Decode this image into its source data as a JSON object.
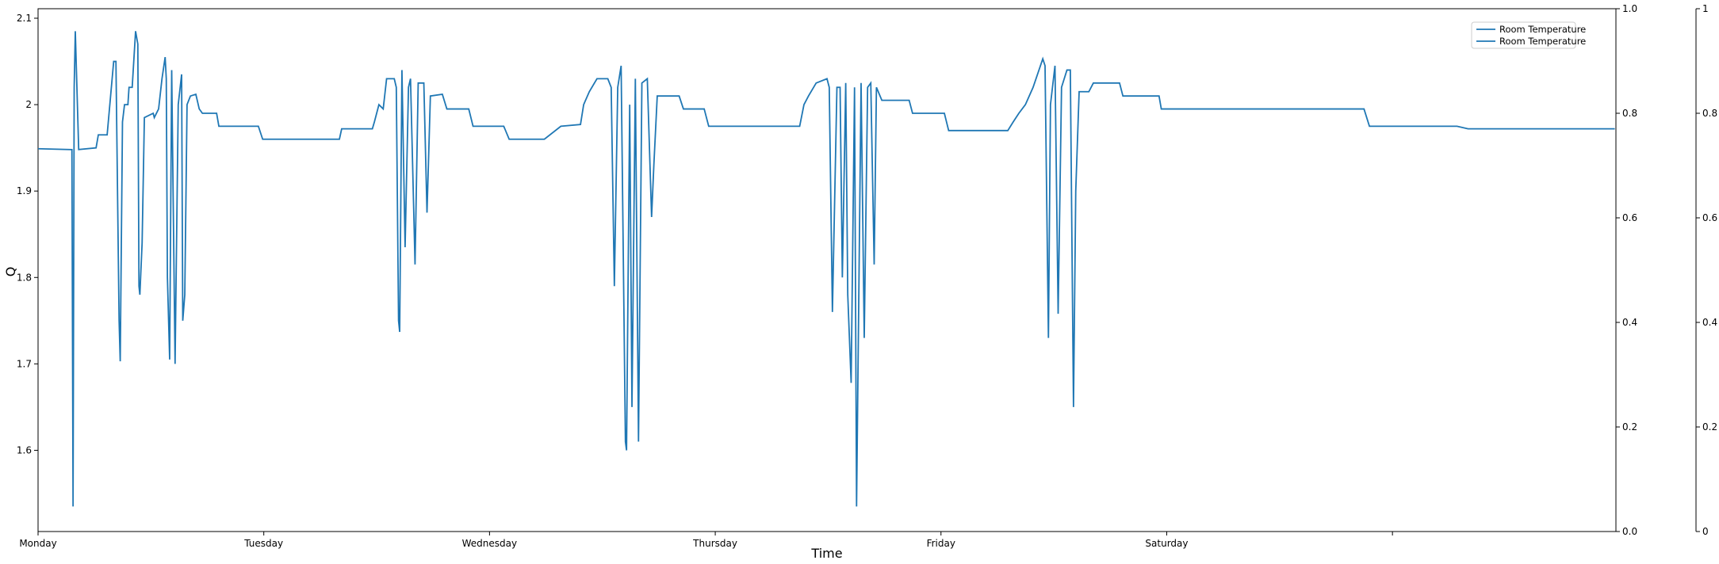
{
  "chart_data": {
    "type": "line",
    "x_label": "Time",
    "y_label": "Q",
    "x": [
      0,
      0.15,
      0.155,
      0.16,
      0.165,
      0.18,
      0.257,
      0.267,
      0.306,
      0.335,
      0.345,
      0.359,
      0.364,
      0.374,
      0.383,
      0.398,
      0.403,
      0.417,
      0.432,
      0.442,
      0.447,
      0.451,
      0.461,
      0.471,
      0.51,
      0.515,
      0.534,
      0.549,
      0.563,
      0.568,
      0.573,
      0.583,
      0.592,
      0.607,
      0.621,
      0.636,
      0.641,
      0.65,
      0.66,
      0.675,
      0.699,
      0.714,
      0.728,
      0.791,
      0.801,
      0.976,
      0.995,
      1.335,
      1.345,
      1.481,
      1.49,
      1.51,
      1.529,
      1.544,
      1.578,
      1.587,
      1.597,
      1.602,
      1.612,
      1.626,
      1.641,
      1.65,
      1.67,
      1.684,
      1.709,
      1.723,
      1.738,
      1.791,
      1.811,
      1.908,
      1.927,
      2.063,
      2.087,
      2.243,
      2.316,
      2.403,
      2.417,
      2.442,
      2.476,
      2.524,
      2.539,
      2.553,
      2.568,
      2.583,
      2.602,
      2.607,
      2.621,
      2.631,
      2.646,
      2.66,
      2.675,
      2.699,
      2.718,
      2.728,
      2.743,
      2.84,
      2.859,
      2.951,
      2.971,
      3.374,
      3.393,
      3.413,
      3.447,
      3.495,
      3.505,
      3.519,
      3.539,
      3.553,
      3.563,
      3.578,
      3.587,
      3.602,
      3.617,
      3.626,
      3.646,
      3.66,
      3.675,
      3.689,
      3.704,
      3.714,
      3.738,
      3.859,
      3.874,
      4.015,
      4.034,
      4.296,
      4.32,
      4.345,
      4.374,
      4.408,
      4.451,
      4.461,
      4.476,
      4.485,
      4.505,
      4.519,
      4.534,
      4.558,
      4.573,
      4.587,
      4.597,
      4.612,
      4.655,
      4.675,
      4.791,
      4.806,
      4.966,
      4.976,
      5.874,
      5.898,
      5.971,
      5.995,
      6.286,
      6.335,
      6.985
    ],
    "series": [
      {
        "name": "Room Temperature",
        "color": "#1f77b4",
        "values": [
          1.949,
          1.948,
          1.535,
          2.02,
          2.085,
          1.948,
          1.95,
          1.965,
          1.965,
          2.05,
          2.05,
          1.75,
          1.703,
          1.98,
          2.0,
          2.0,
          2.02,
          2.02,
          2.085,
          2.07,
          1.79,
          1.78,
          1.84,
          1.985,
          1.99,
          1.985,
          1.995,
          2.03,
          2.055,
          2.03,
          1.8,
          1.705,
          2.04,
          1.7,
          2.0,
          2.035,
          1.75,
          1.78,
          2.0,
          2.01,
          2.012,
          1.995,
          1.99,
          1.99,
          1.975,
          1.975,
          1.96,
          1.96,
          1.972,
          1.972,
          1.98,
          2.0,
          1.995,
          2.03,
          2.03,
          2.02,
          1.75,
          1.737,
          2.04,
          1.835,
          2.02,
          2.03,
          1.815,
          2.025,
          2.025,
          1.875,
          2.01,
          2.012,
          1.995,
          1.995,
          1.975,
          1.975,
          1.96,
          1.96,
          1.975,
          1.977,
          2.0,
          2.015,
          2.03,
          2.03,
          2.02,
          1.79,
          2.02,
          2.045,
          1.61,
          1.6,
          2.0,
          1.65,
          2.03,
          1.61,
          2.025,
          2.03,
          1.87,
          1.93,
          2.01,
          2.01,
          1.995,
          1.995,
          1.975,
          1.975,
          2.0,
          2.01,
          2.025,
          2.03,
          2.02,
          1.76,
          2.02,
          2.02,
          1.8,
          2.025,
          1.78,
          1.678,
          2.02,
          1.535,
          2.025,
          1.73,
          2.02,
          2.025,
          1.815,
          2.02,
          2.005,
          2.005,
          1.99,
          1.99,
          1.97,
          1.97,
          1.98,
          1.99,
          2.0,
          2.02,
          2.053,
          2.045,
          1.73,
          2.0,
          2.045,
          1.758,
          2.02,
          2.04,
          2.04,
          1.65,
          1.9,
          2.015,
          2.015,
          2.025,
          2.025,
          2.01,
          2.01,
          1.995,
          1.995,
          1.975,
          1.975,
          1.975,
          1.975,
          1.972,
          1.972
        ]
      },
      {
        "name": "Room Temperature",
        "color": "#1f77b4",
        "axis": "y2",
        "values": [
          null,
          null,
          null,
          null,
          null,
          null,
          null,
          null,
          null,
          null,
          null,
          null,
          null,
          null,
          null,
          null,
          null,
          null,
          null,
          null,
          null,
          null,
          null,
          null,
          null,
          null,
          null,
          null,
          null,
          null,
          null,
          null,
          null,
          null,
          null,
          null,
          null,
          null,
          null,
          null,
          null,
          null,
          null,
          null,
          null,
          null,
          null,
          null,
          null,
          null,
          null,
          null,
          null,
          null,
          null,
          null,
          null,
          null,
          null,
          null,
          null,
          null,
          null,
          null,
          null,
          null,
          null,
          null,
          null,
          null,
          null,
          null,
          null,
          null,
          null,
          null,
          null,
          null,
          null,
          null,
          null,
          null,
          null,
          null,
          null,
          null,
          null,
          null,
          null,
          null,
          null,
          null,
          null,
          null,
          null,
          null,
          null,
          null,
          null,
          null,
          null,
          null,
          null,
          null,
          null,
          null,
          null,
          null,
          null,
          null,
          null,
          null,
          null,
          null,
          null,
          null,
          null,
          null,
          null,
          null,
          null,
          null,
          null,
          null,
          null,
          null,
          null,
          null,
          null,
          null,
          null,
          null,
          null,
          null,
          null,
          null,
          null,
          null,
          null,
          null,
          null,
          null,
          null,
          null,
          null,
          null,
          null,
          null,
          null,
          null,
          null,
          null,
          null,
          null,
          null
        ]
      }
    ],
    "xlim": [
      0,
      6.99
    ],
    "xticks": [
      {
        "value": 0,
        "label": "Monday"
      },
      {
        "value": 1,
        "label": "Tuesday"
      },
      {
        "value": 2,
        "label": "Wednesday"
      },
      {
        "value": 3,
        "label": "Thursday"
      },
      {
        "value": 4,
        "label": "Friday"
      },
      {
        "value": 5,
        "label": "Saturday"
      },
      {
        "value": 6,
        "label": null
      }
    ],
    "ylim": [
      1.506,
      2.111
    ],
    "yticks": [
      1.6,
      1.7,
      1.8,
      1.9,
      2.0,
      2.1
    ],
    "y2lim": [
      0,
      1
    ],
    "y2ticks": [
      {
        "value": 0,
        "label": "0.0"
      },
      0.2,
      0.4,
      0.6,
      0.8,
      {
        "value": 1,
        "label": "1.0"
      }
    ],
    "y3lim": [
      0,
      1
    ],
    "y3ticks": [
      0,
      0.2,
      0.4,
      0.6,
      0.8,
      1
    ],
    "legend": "upper right",
    "grid": false
  }
}
